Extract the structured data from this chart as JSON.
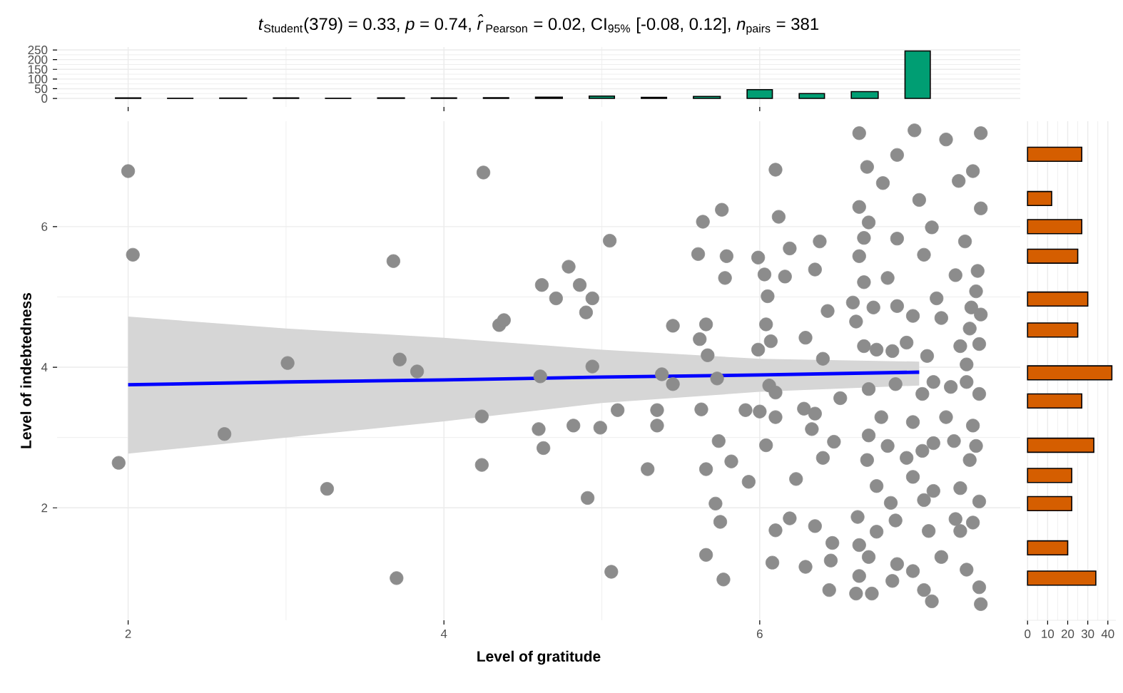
{
  "chart_data": [
    {
      "type": "scatter",
      "title": "*t*$_{Student}$(379) = 0.33, *p* = 0.74, *r̂*$_{Pearson}$ = 0.02, CI$_{95%}$ [-0.08, 0.12], *n*$_{pairs}$ = 381",
      "xlabel": "Level of gratitude",
      "ylabel": "Level of indebtedness",
      "xlim": [
        1.55,
        7.65
      ],
      "ylim": [
        0.4,
        7.5
      ],
      "xticks": [
        2,
        4,
        6
      ],
      "yticks": [
        2,
        4,
        6
      ],
      "grid": true,
      "series": [
        {
          "type": "scatter",
          "marker": "circle",
          "color": "#8c8c8c",
          "x": [
            2.0,
            2.03,
            1.94,
            2.61,
            3.01,
            3.26,
            3.68,
            3.72,
            3.83,
            3.7,
            4.25,
            4.24,
            4.24,
            4.35,
            4.38,
            4.62,
            4.71,
            4.79,
            4.86,
            4.94,
            4.9,
            4.61,
            4.94,
            4.6,
            4.63,
            4.82,
            4.99,
            5.1,
            4.91,
            5.05,
            5.06,
            6.1,
            6.12,
            5.64,
            5.76,
            5.61,
            5.79,
            5.78,
            5.99,
            6.03,
            6.16,
            6.19,
            6.35,
            6.38,
            6.05,
            6.04,
            5.45,
            5.66,
            5.62,
            5.67,
            5.99,
            6.07,
            6.29,
            6.43,
            6.4,
            5.38,
            5.45,
            5.73,
            6.06,
            6.1,
            5.35,
            5.63,
            5.91,
            6.0,
            6.1,
            6.28,
            6.35,
            6.51,
            6.47,
            6.33,
            5.35,
            5.74,
            5.82,
            6.04,
            5.29,
            5.66,
            5.93,
            6.23,
            6.4,
            5.72,
            5.75,
            5.66,
            5.77,
            6.1,
            6.19,
            6.35,
            6.08,
            6.29,
            6.46,
            6.44,
            6.45,
            6.63,
            6.98,
            7.4,
            7.18,
            6.87,
            6.68,
            7.35,
            6.78,
            7.01,
            7.26,
            6.63,
            7.4,
            7.09,
            6.69,
            6.66,
            6.87,
            7.3,
            7.04,
            6.63,
            6.81,
            7.24,
            7.38,
            6.66,
            7.37,
            7.12,
            6.59,
            6.72,
            6.87,
            7.34,
            6.97,
            6.61,
            7.15,
            7.4,
            7.33,
            6.66,
            6.93,
            7.27,
            7.39,
            6.74,
            7.06,
            7.31,
            6.84,
            6.86,
            6.69,
            7.1,
            7.31,
            7.39,
            7.21,
            7.03,
            6.77,
            6.97,
            7.35,
            7.18,
            6.69,
            6.81,
            7.03,
            7.1,
            7.23,
            7.37,
            6.68,
            6.93,
            7.33,
            6.97,
            6.74,
            7.1,
            7.27,
            7.39,
            6.83,
            7.04,
            6.62,
            6.86,
            7.24,
            7.35,
            6.74,
            7.07,
            7.27,
            6.63,
            7.15,
            6.69,
            6.87,
            7.31,
            6.97,
            6.63,
            7.39,
            7.04,
            6.84,
            6.61,
            7.4,
            7.09,
            6.71
          ],
          "values": [
            6.79,
            5.6,
            2.64,
            3.05,
            4.06,
            2.27,
            5.51,
            4.11,
            3.94,
            1.0,
            6.77,
            3.3,
            2.61,
            4.6,
            4.67,
            5.17,
            4.98,
            5.43,
            5.17,
            4.98,
            4.78,
            3.87,
            4.01,
            3.12,
            2.85,
            3.17,
            3.14,
            3.39,
            2.14,
            5.8,
            1.09,
            6.81,
            6.14,
            6.07,
            6.24,
            5.61,
            5.58,
            5.27,
            5.56,
            5.32,
            5.29,
            5.69,
            5.39,
            5.79,
            5.01,
            4.61,
            4.59,
            4.61,
            4.4,
            4.17,
            4.25,
            4.37,
            4.42,
            4.8,
            4.12,
            3.9,
            3.76,
            3.84,
            3.74,
            3.64,
            3.39,
            3.4,
            3.39,
            3.37,
            3.29,
            3.41,
            3.34,
            3.56,
            2.94,
            3.12,
            3.17,
            2.95,
            2.66,
            2.89,
            2.55,
            2.55,
            2.37,
            2.41,
            2.71,
            2.06,
            1.8,
            1.33,
            0.98,
            1.68,
            1.85,
            1.74,
            1.22,
            1.16,
            1.5,
            0.83,
            1.25,
            7.33,
            7.37,
            7.33,
            7.24,
            7.02,
            6.85,
            6.79,
            6.62,
            6.38,
            6.65,
            6.28,
            6.26,
            5.99,
            6.06,
            5.84,
            5.83,
            5.79,
            5.6,
            5.58,
            5.27,
            5.31,
            5.37,
            5.21,
            5.08,
            4.98,
            4.92,
            4.85,
            4.87,
            4.85,
            4.73,
            4.65,
            4.7,
            4.75,
            4.55,
            4.3,
            4.35,
            4.3,
            4.33,
            4.25,
            4.16,
            4.04,
            4.23,
            3.76,
            3.69,
            3.79,
            3.79,
            3.62,
            3.72,
            3.62,
            3.29,
            3.22,
            3.17,
            3.29,
            3.03,
            2.88,
            2.81,
            2.92,
            2.95,
            2.88,
            2.68,
            2.71,
            2.68,
            2.44,
            2.31,
            2.24,
            2.28,
            2.09,
            2.07,
            2.11,
            1.87,
            1.82,
            1.84,
            1.79,
            1.66,
            1.67,
            1.67,
            1.47,
            1.3,
            1.3,
            1.2,
            1.12,
            1.1,
            1.03,
            0.87,
            0.83,
            0.96,
            0.78,
            0.63,
            0.67,
            0.78
          ]
        },
        {
          "type": "line",
          "color": "#0000ff",
          "x": [
            2,
            3,
            4,
            5,
            6,
            7.01
          ],
          "values": [
            3.75,
            3.79,
            3.82,
            3.86,
            3.89,
            3.93
          ],
          "lower": [
            2.77,
            3.0,
            3.23,
            3.49,
            3.65,
            3.74
          ],
          "upper": [
            4.72,
            4.55,
            4.42,
            4.25,
            4.12,
            4.08
          ]
        }
      ]
    },
    {
      "type": "histogram",
      "color": "#009e73",
      "xlim": [
        1.55,
        7.65
      ],
      "ylim": [
        -44,
        265
      ],
      "xticks": [
        2,
        4,
        6
      ],
      "yticks": [
        0,
        50,
        100,
        150,
        200,
        250
      ],
      "grid": true,
      "tick_labels": "y",
      "bins": [
        1.92,
        2.08,
        2.25,
        2.41,
        2.58,
        2.75,
        2.92,
        3.08,
        3.25,
        3.41,
        3.58,
        3.75,
        3.92,
        4.08,
        4.25,
        4.41,
        4.58,
        4.75,
        4.92,
        5.08,
        5.25,
        5.41,
        5.58,
        5.75,
        5.92,
        6.08,
        6.25,
        6.41,
        6.58,
        6.75,
        6.92,
        7.08
      ],
      "values": [
        3,
        0,
        1,
        0,
        2,
        0,
        3,
        0,
        1,
        0,
        3,
        0,
        3,
        0,
        4,
        0,
        6,
        0,
        12,
        0,
        5,
        0,
        10,
        0,
        45,
        0,
        25,
        0,
        35,
        0,
        245
      ]
    },
    {
      "type": "histogram",
      "orientation": "horizontal",
      "color": "#d55e00",
      "xlim": [
        -1.5,
        44
      ],
      "ylim": [
        0.4,
        7.5
      ],
      "xticks": [
        0,
        10,
        20,
        30,
        40
      ],
      "grid": "x",
      "tick_labels": "x",
      "bins": [
        0.9,
        1.1,
        1.33,
        1.53,
        1.96,
        2.16,
        2.36,
        2.56,
        2.79,
        2.99,
        3.42,
        3.62,
        3.82,
        4.02,
        4.43,
        4.63,
        4.87,
        5.07,
        5.48,
        5.68,
        5.9,
        6.1,
        6.3,
        6.5,
        6.93,
        7.13
      ],
      "values": [
        34,
        0,
        20,
        0,
        22,
        0,
        22,
        0,
        33,
        0,
        27,
        0,
        42,
        0,
        25,
        0,
        30,
        0,
        25,
        0,
        27,
        0,
        12,
        0,
        27
      ]
    }
  ]
}
